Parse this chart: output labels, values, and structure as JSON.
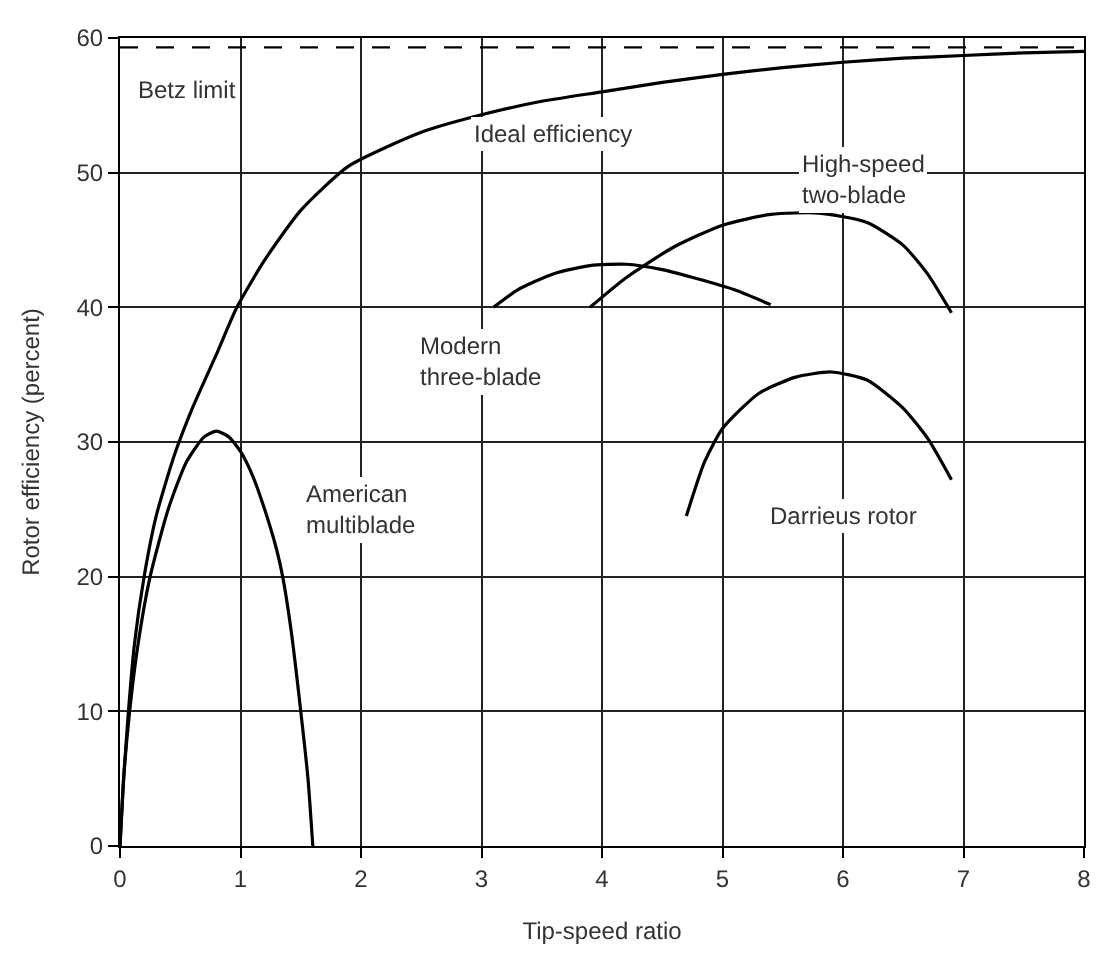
{
  "chart_data": {
    "type": "line",
    "xlabel": "Tip-speed ratio",
    "ylabel": "Rotor efficiency (percent)",
    "xlim": [
      0,
      8
    ],
    "xticks": [
      0,
      1,
      2,
      3,
      4,
      5,
      6,
      7,
      8
    ],
    "ylim": [
      0,
      60
    ],
    "yticks": [
      0,
      10,
      20,
      30,
      40,
      50,
      60
    ],
    "grid": true,
    "marker": "none",
    "line_style": "solid",
    "series": [
      {
        "color": "#000000",
        "x": [
          0,
          0.03,
          0.07,
          0.12,
          0.2,
          0.3,
          0.45,
          0.6,
          0.8,
          0.97,
          1.2,
          1.5,
          1.9,
          2.5,
          3,
          3.5,
          4,
          4.5,
          5,
          5.5,
          6,
          6.5,
          7,
          7.5,
          8
        ],
        "values": [
          0,
          5,
          10,
          15,
          20,
          24.5,
          29,
          32.5,
          36.5,
          40,
          43.5,
          47.2,
          50.5,
          53,
          54.3,
          55.3,
          56,
          56.7,
          57.3,
          57.8,
          58.2,
          58.5,
          58.7,
          58.9,
          59
        ]
      },
      {
        "color": "#000000",
        "x": [
          0,
          0.03,
          0.08,
          0.15,
          0.25,
          0.4,
          0.55,
          0.7,
          0.8,
          0.9,
          1.0,
          1.1,
          1.2,
          1.3,
          1.35,
          1.42,
          1.5,
          1.56,
          1.6
        ],
        "values": [
          0,
          5,
          10,
          15,
          20,
          25,
          28.5,
          30.4,
          30.8,
          30.4,
          29.3,
          27.5,
          25,
          22,
          20,
          16,
          10,
          5,
          0
        ]
      },
      {
        "color": "#000000",
        "x": [
          3.1,
          3.3,
          3.6,
          3.9,
          4.2,
          4.5,
          4.8,
          5.1,
          5.4
        ],
        "values": [
          40,
          41.3,
          42.5,
          43.1,
          43.2,
          42.8,
          42.1,
          41.3,
          40.2
        ]
      },
      {
        "color": "#000000",
        "x": [
          3.9,
          4.2,
          4.6,
          5.0,
          5.4,
          5.8,
          6.2,
          6.5,
          6.7,
          6.9
        ],
        "values": [
          40,
          42.2,
          44.5,
          46.1,
          46.9,
          47,
          46.3,
          44.6,
          42.5,
          39.6
        ]
      },
      {
        "color": "#000000",
        "x": [
          4.7,
          4.85,
          5.0,
          5.3,
          5.6,
          5.9,
          6.2,
          6.5,
          6.7,
          6.9
        ],
        "values": [
          24.5,
          28.5,
          31,
          33.6,
          34.8,
          35.2,
          34.6,
          32.5,
          30.3,
          27.2
        ]
      }
    ],
    "ref_lines": [
      {
        "axis": "y",
        "value": 59.3,
        "label": "Betz limit",
        "color": "#000000",
        "line_style": "dashed"
      }
    ],
    "annotations": [
      "Ideal efficiency",
      "High-speed\ntwo-blade",
      "Modern\nthree-blade",
      "American\nmultiblade",
      "Darrieus rotor"
    ]
  }
}
